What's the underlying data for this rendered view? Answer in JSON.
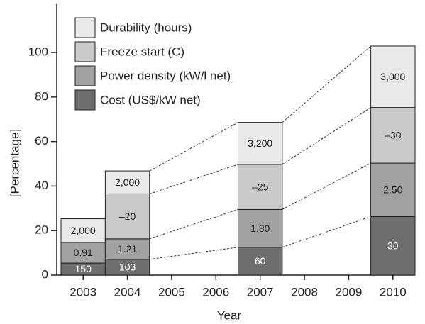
{
  "chart_data": {
    "type": "stacked_bar",
    "x_label": "Year",
    "y_label": "[Percentage]",
    "categories": [
      "2003",
      "2004",
      "2005",
      "2006",
      "2007",
      "2008",
      "2009",
      "2010"
    ],
    "series": [
      {
        "name": "Cost (US$/kW net)",
        "color": "#6e6e6e",
        "values": [
          5.4,
          7.1,
          null,
          null,
          12.5,
          null,
          null,
          26.3
        ],
        "value_labels": [
          "150",
          "103",
          null,
          null,
          "60",
          null,
          null,
          "30"
        ]
      },
      {
        "name": "Power density (kW/l net)",
        "color": "#a2a2a2",
        "values": [
          9.3,
          9.2,
          null,
          null,
          17.0,
          null,
          null,
          24.0
        ],
        "value_labels": [
          "0.91",
          "1.21",
          null,
          null,
          "1.80",
          null,
          null,
          "2.50"
        ]
      },
      {
        "name": "Freeze start (C)",
        "color": "#c9c9c9",
        "values": [
          null,
          20.2,
          null,
          null,
          20.2,
          null,
          null,
          25.0
        ],
        "value_labels": [
          null,
          "–20",
          null,
          null,
          "–25",
          null,
          null,
          "–30"
        ]
      },
      {
        "name": "Durability (hours)",
        "color": "#e9e9e9",
        "values": [
          10.6,
          10.3,
          null,
          null,
          18.9,
          null,
          null,
          27.6
        ],
        "value_labels": [
          "2,000",
          "2,000",
          null,
          null,
          "3,200",
          null,
          null,
          "3,000"
        ]
      }
    ],
    "ylim": [
      0,
      122
    ],
    "yticks": [
      0,
      20,
      40,
      60,
      80,
      100
    ],
    "legend": "top-left"
  }
}
